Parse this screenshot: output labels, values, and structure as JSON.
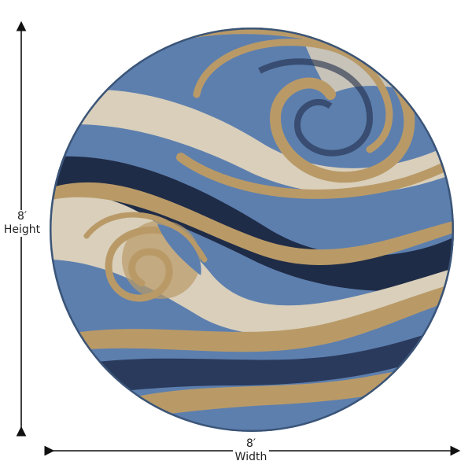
{
  "product": {
    "shape": "round rug",
    "colors": {
      "blue": "#5d7fae",
      "navy": "#1f2c47",
      "tan": "#b99a67",
      "cream": "#d9cfbb"
    }
  },
  "dimensions": {
    "height": {
      "value": "8′",
      "label": "Height"
    },
    "width": {
      "value": "8′",
      "label": "Width"
    }
  }
}
